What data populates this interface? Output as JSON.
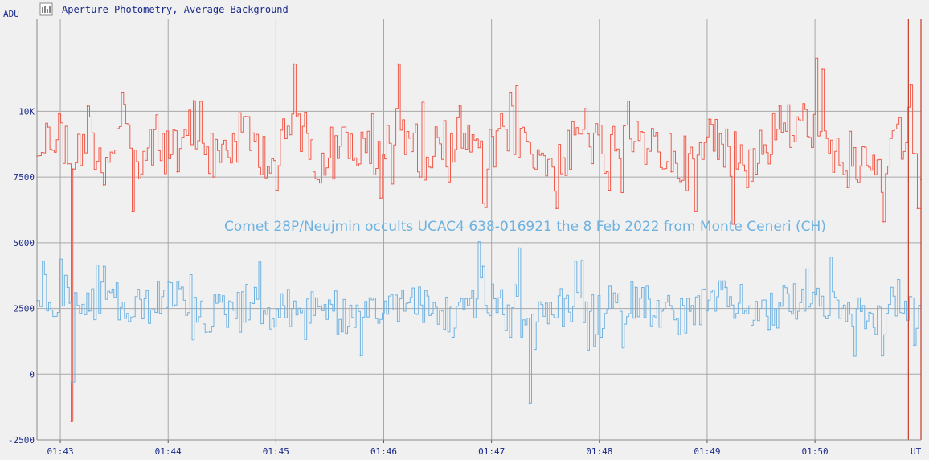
{
  "chart_data": {
    "type": "line",
    "title": "Aperture Photometry, Average Background",
    "ylabel": "ADU",
    "xlabel": "UT",
    "annotation": "Comet 28P/Neujmin occults UCAC4 638-016921 the 8 Feb 2022 from Monte Ceneri (CH)",
    "ylim": [
      -2500,
      13500
    ],
    "yticks": [
      -2500,
      0,
      2500,
      5000,
      7500,
      10000
    ],
    "ytick_labels": [
      "-2500",
      "0",
      "2500",
      "5000",
      "7500",
      "10K"
    ],
    "xlim": [
      "01:42:47",
      "01:50:59"
    ],
    "xticks": [
      "01:43",
      "01:44",
      "01:45",
      "01:46",
      "01:47",
      "01:48",
      "01:49",
      "01:50"
    ],
    "grid": true,
    "markers": [
      "01:50:52",
      "01:50:59"
    ],
    "series": [
      {
        "color": "#f05a4a",
        "mean": 8700,
        "points": [
          [
            "01:42:47",
            8300
          ],
          [
            "01:42:53",
            9400
          ],
          [
            "01:42:59",
            9900
          ],
          [
            "01:43:04",
            8000
          ],
          [
            "01:43:06",
            -1800
          ],
          [
            "01:43:07",
            7800
          ],
          [
            "01:43:15",
            10200
          ],
          [
            "01:43:24",
            7200
          ],
          [
            "01:43:34",
            10700
          ],
          [
            "01:43:40",
            6200
          ],
          [
            "01:43:52",
            9300
          ],
          [
            "01:44:05",
            7700
          ],
          [
            "01:44:14",
            10400
          ],
          [
            "01:44:25",
            7500
          ],
          [
            "01:44:43",
            9800
          ],
          [
            "01:45:00",
            7000
          ],
          [
            "01:45:10",
            11800
          ],
          [
            "01:45:23",
            7400
          ],
          [
            "01:45:39",
            9200
          ],
          [
            "01:45:58",
            6700
          ],
          [
            "01:46:08",
            11800
          ],
          [
            "01:46:20",
            7500
          ],
          [
            "01:46:42",
            10200
          ],
          [
            "01:46:55",
            6500
          ],
          [
            "01:47:10",
            10700
          ],
          [
            "01:47:36",
            6300
          ],
          [
            "01:47:52",
            10100
          ],
          [
            "01:48:05",
            7000
          ],
          [
            "01:48:24",
            9200
          ],
          [
            "01:48:40",
            7700
          ],
          [
            "01:48:53",
            6200
          ],
          [
            "01:49:01",
            9700
          ],
          [
            "01:49:22",
            7100
          ],
          [
            "01:49:40",
            10200
          ],
          [
            "01:50:04",
            11600
          ],
          [
            "01:50:18",
            7100
          ],
          [
            "01:50:38",
            5800
          ],
          [
            "01:50:53",
            11000
          ],
          [
            "01:50:57",
            6300
          ],
          [
            "01:50:59",
            7400
          ]
        ]
      },
      {
        "color": "#6fb2e0",
        "mean": 2600,
        "points": [
          [
            "01:42:47",
            2800
          ],
          [
            "01:42:50",
            4300
          ],
          [
            "01:42:57",
            2200
          ],
          [
            "01:43:05",
            2700
          ],
          [
            "01:43:06",
            -300
          ],
          [
            "01:43:08",
            3100
          ],
          [
            "01:43:16",
            2400
          ],
          [
            "01:43:24",
            4100
          ],
          [
            "01:43:38",
            2000
          ],
          [
            "01:44:00",
            3500
          ],
          [
            "01:44:23",
            1600
          ],
          [
            "01:44:48",
            3300
          ],
          [
            "01:44:59",
            1800
          ],
          [
            "01:45:22",
            2900
          ],
          [
            "01:45:47",
            700
          ],
          [
            "01:46:10",
            3200
          ],
          [
            "01:46:38",
            1400
          ],
          [
            "01:46:55",
            4100
          ],
          [
            "01:47:10",
            1400
          ],
          [
            "01:47:15",
            4800
          ],
          [
            "01:47:21",
            -1100
          ],
          [
            "01:47:30",
            2700
          ],
          [
            "01:47:58",
            1500
          ],
          [
            "01:48:20",
            3300
          ],
          [
            "01:48:44",
            1500
          ],
          [
            "01:49:10",
            3300
          ],
          [
            "01:49:34",
            1700
          ],
          [
            "01:49:55",
            4000
          ],
          [
            "01:50:17",
            2000
          ],
          [
            "01:50:37",
            700
          ],
          [
            "01:50:46",
            3600
          ],
          [
            "01:50:55",
            1100
          ],
          [
            "01:50:59",
            2900
          ]
        ]
      }
    ]
  }
}
